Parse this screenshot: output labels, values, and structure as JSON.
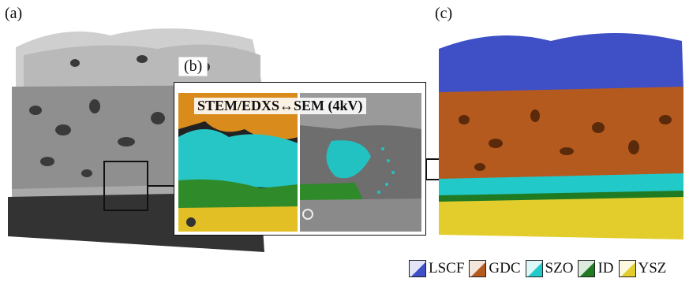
{
  "panels": {
    "a_label": "(a)",
    "b_label": "(b)",
    "c_label": "(c)",
    "b_title": "STEM/EDXS↔SEM (4kV)"
  },
  "legend": [
    {
      "name": "LSCF",
      "color": "#3f4fc6"
    },
    {
      "name": "GDC",
      "color": "#b55a1f"
    },
    {
      "name": "SZO",
      "color": "#22c9c9"
    },
    {
      "name": "ID",
      "color": "#1f7a22"
    },
    {
      "name": "YSZ",
      "color": "#e3cd2c"
    }
  ]
}
